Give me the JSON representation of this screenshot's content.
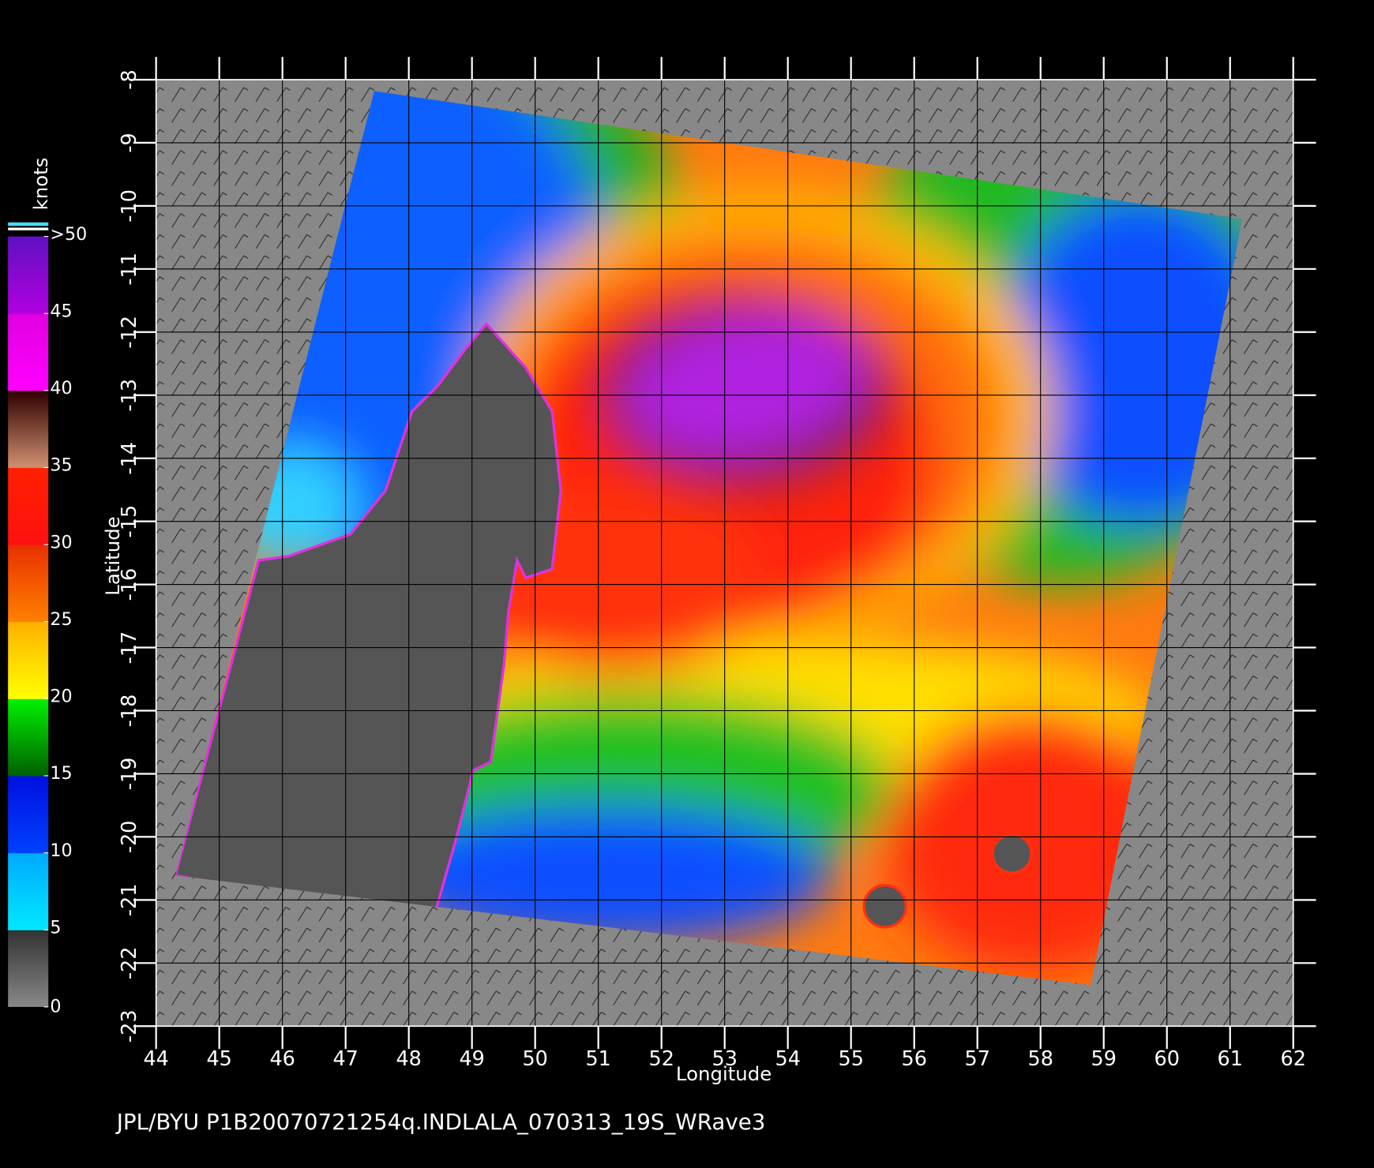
{
  "map": {
    "title": "JPL/BYU  P1B20070721254q.INDLALA_070313_19S_WRave3",
    "xlabel": "Longitude",
    "ylabel": "Latitude",
    "xlim": [
      44,
      62
    ],
    "ylim": [
      -23,
      -8
    ],
    "xticks": [
      44,
      45,
      46,
      47,
      48,
      49,
      50,
      51,
      52,
      53,
      54,
      55,
      56,
      57,
      58,
      59,
      60,
      61,
      62
    ],
    "yticks": [
      -8,
      -9,
      -10,
      -11,
      -12,
      -13,
      -14,
      -15,
      -16,
      -17,
      -18,
      -19,
      -20,
      -21,
      -22,
      -23
    ],
    "grid": true,
    "colorbar": {
      "label": "knots",
      "lim": [
        0,
        50
      ],
      "ticks": [
        0,
        5,
        10,
        15,
        20,
        25,
        30,
        35,
        40,
        45,
        {
          "value": 50,
          "label": ">50"
        }
      ]
    }
  }
}
